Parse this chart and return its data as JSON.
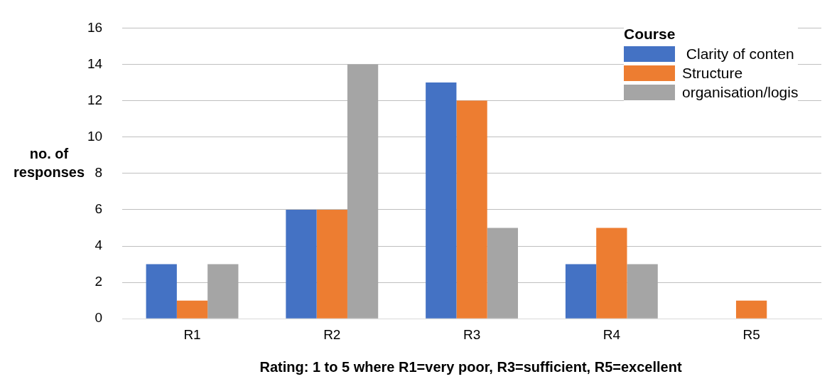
{
  "chart_data": {
    "type": "bar",
    "xlabel": "Rating: 1 to 5 where R1=very poor, R3=sufficient, R5=excellent",
    "ylabel": "no. of responses",
    "legend_title": "Course",
    "categories": [
      "R1",
      "R2",
      "R3",
      "R4",
      "R5"
    ],
    "series": [
      {
        "name": " Clarity of conten",
        "color": "#4472c4",
        "values": [
          3,
          6,
          13,
          3,
          0
        ]
      },
      {
        "name": "Structure",
        "color": "#ed7d31",
        "values": [
          1,
          6,
          12,
          5,
          1
        ]
      },
      {
        "name": "organisation/logis",
        "color": "#a5a5a5",
        "values": [
          3,
          14,
          5,
          3,
          0
        ]
      }
    ],
    "ylim": [
      0,
      16
    ],
    "yticks": [
      0,
      2,
      4,
      6,
      8,
      10,
      12,
      14,
      16
    ],
    "grid": "y",
    "legend": "top right"
  }
}
